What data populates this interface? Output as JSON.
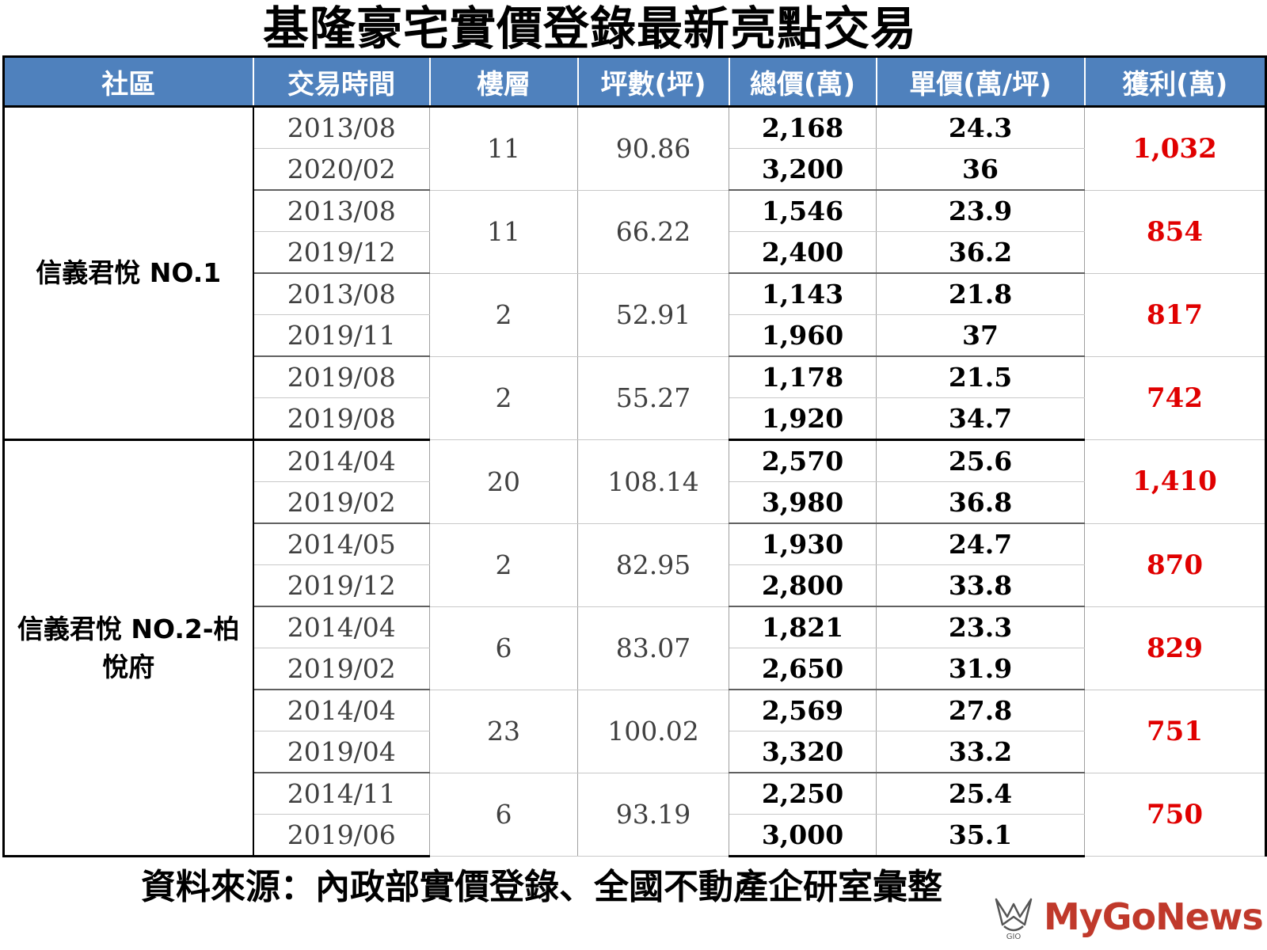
{
  "title": "基隆豪宅實價登錄最新亮點交易",
  "headers": [
    "社區",
    "交易時間",
    "樓層",
    "坪數(坪)",
    "總價(萬)",
    "單價(萬/坪)",
    "獲利(萬)"
  ],
  "communities": [
    {
      "name": "信義君悅 NO.1",
      "deals": [
        {
          "dates": [
            "2013/08",
            "2020/02"
          ],
          "floor": "11",
          "area": "90.86",
          "totals": [
            "2,168",
            "3,200"
          ],
          "units": [
            "24.3",
            "36"
          ],
          "profit": "1,032"
        },
        {
          "dates": [
            "2013/08",
            "2019/12"
          ],
          "floor": "11",
          "area": "66.22",
          "totals": [
            "1,546",
            "2,400"
          ],
          "units": [
            "23.9",
            "36.2"
          ],
          "profit": "854"
        },
        {
          "dates": [
            "2013/08",
            "2019/11"
          ],
          "floor": "2",
          "area": "52.91",
          "totals": [
            "1,143",
            "1,960"
          ],
          "units": [
            "21.8",
            "37"
          ],
          "profit": "817"
        },
        {
          "dates": [
            "2019/08",
            "2019/08"
          ],
          "floor": "2",
          "area": "55.27",
          "totals": [
            "1,178",
            "1,920"
          ],
          "units": [
            "21.5",
            "34.7"
          ],
          "profit": "742"
        }
      ]
    },
    {
      "name": "信義君悅 NO.2-柏悅府",
      "deals": [
        {
          "dates": [
            "2014/04",
            "2019/02"
          ],
          "floor": "20",
          "area": "108.14",
          "totals": [
            "2,570",
            "3,980"
          ],
          "units": [
            "25.6",
            "36.8"
          ],
          "profit": "1,410"
        },
        {
          "dates": [
            "2014/05",
            "2019/12"
          ],
          "floor": "2",
          "area": "82.95",
          "totals": [
            "1,930",
            "2,800"
          ],
          "units": [
            "24.7",
            "33.8"
          ],
          "profit": "870"
        },
        {
          "dates": [
            "2014/04",
            "2019/02"
          ],
          "floor": "6",
          "area": "83.07",
          "totals": [
            "1,821",
            "2,650"
          ],
          "units": [
            "23.3",
            "31.9"
          ],
          "profit": "829"
        },
        {
          "dates": [
            "2014/04",
            "2019/04"
          ],
          "floor": "23",
          "area": "100.02",
          "totals": [
            "2,569",
            "3,320"
          ],
          "units": [
            "27.8",
            "33.2"
          ],
          "profit": "751"
        },
        {
          "dates": [
            "2014/11",
            "2019/06"
          ],
          "floor": "6",
          "area": "93.19",
          "totals": [
            "2,250",
            "3,000"
          ],
          "units": [
            "25.4",
            "35.1"
          ],
          "profit": "750"
        }
      ]
    }
  ],
  "source": "資料來源：內政部實價登錄、全國不動產企研室彙整",
  "logo": {
    "text": "MyGoNews",
    "mark_text": "GIO",
    "icon": "mygonews-logo-icon",
    "color": "#c0392b"
  },
  "colors": {
    "header_bg": "#4f81bd",
    "profit": "#e00000"
  }
}
